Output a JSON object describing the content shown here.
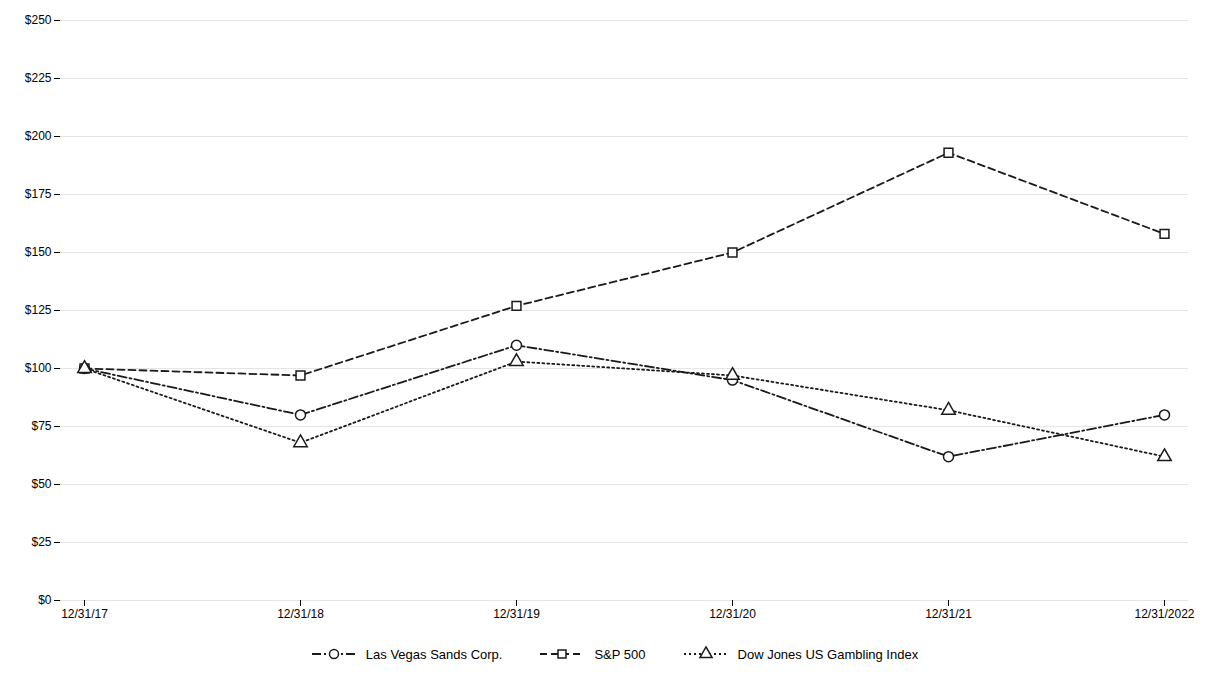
{
  "chart_data": {
    "type": "line",
    "categories": [
      "12/31/17",
      "12/31/18",
      "12/31/19",
      "12/31/20",
      "12/31/21",
      "12/31/2022"
    ],
    "series": [
      {
        "name": "Las Vegas Sands Corp.",
        "color": "#1a1a1a",
        "values": [
          100,
          80,
          110,
          95,
          62,
          80
        ],
        "marker": "circle",
        "line_style": "dashdot"
      },
      {
        "name": "S&P 500",
        "color": "#1a1a1a",
        "values": [
          100,
          97,
          127,
          150,
          193,
          158
        ],
        "marker": "square",
        "line_style": "dashed"
      },
      {
        "name": "Dow Jones US Gambling Index",
        "color": "#1a1a1a",
        "values": [
          100,
          68,
          103,
          97,
          82,
          62
        ],
        "marker": "triangle",
        "line_style": "dotted"
      }
    ],
    "ylim": [
      0,
      250
    ],
    "yticks": [
      {
        "value": 0,
        "label": "$0"
      },
      {
        "value": 25,
        "label": "$25"
      },
      {
        "value": 50,
        "label": "$50"
      },
      {
        "value": 75,
        "label": "$75"
      },
      {
        "value": 100,
        "label": "$100"
      },
      {
        "value": 125,
        "label": "$125"
      },
      {
        "value": 150,
        "label": "$150"
      },
      {
        "value": 175,
        "label": "$175"
      },
      {
        "value": 200,
        "label": "$200"
      },
      {
        "value": 225,
        "label": "$225"
      },
      {
        "value": 250,
        "label": "$250"
      }
    ],
    "grid": true,
    "legend": "bottom"
  }
}
